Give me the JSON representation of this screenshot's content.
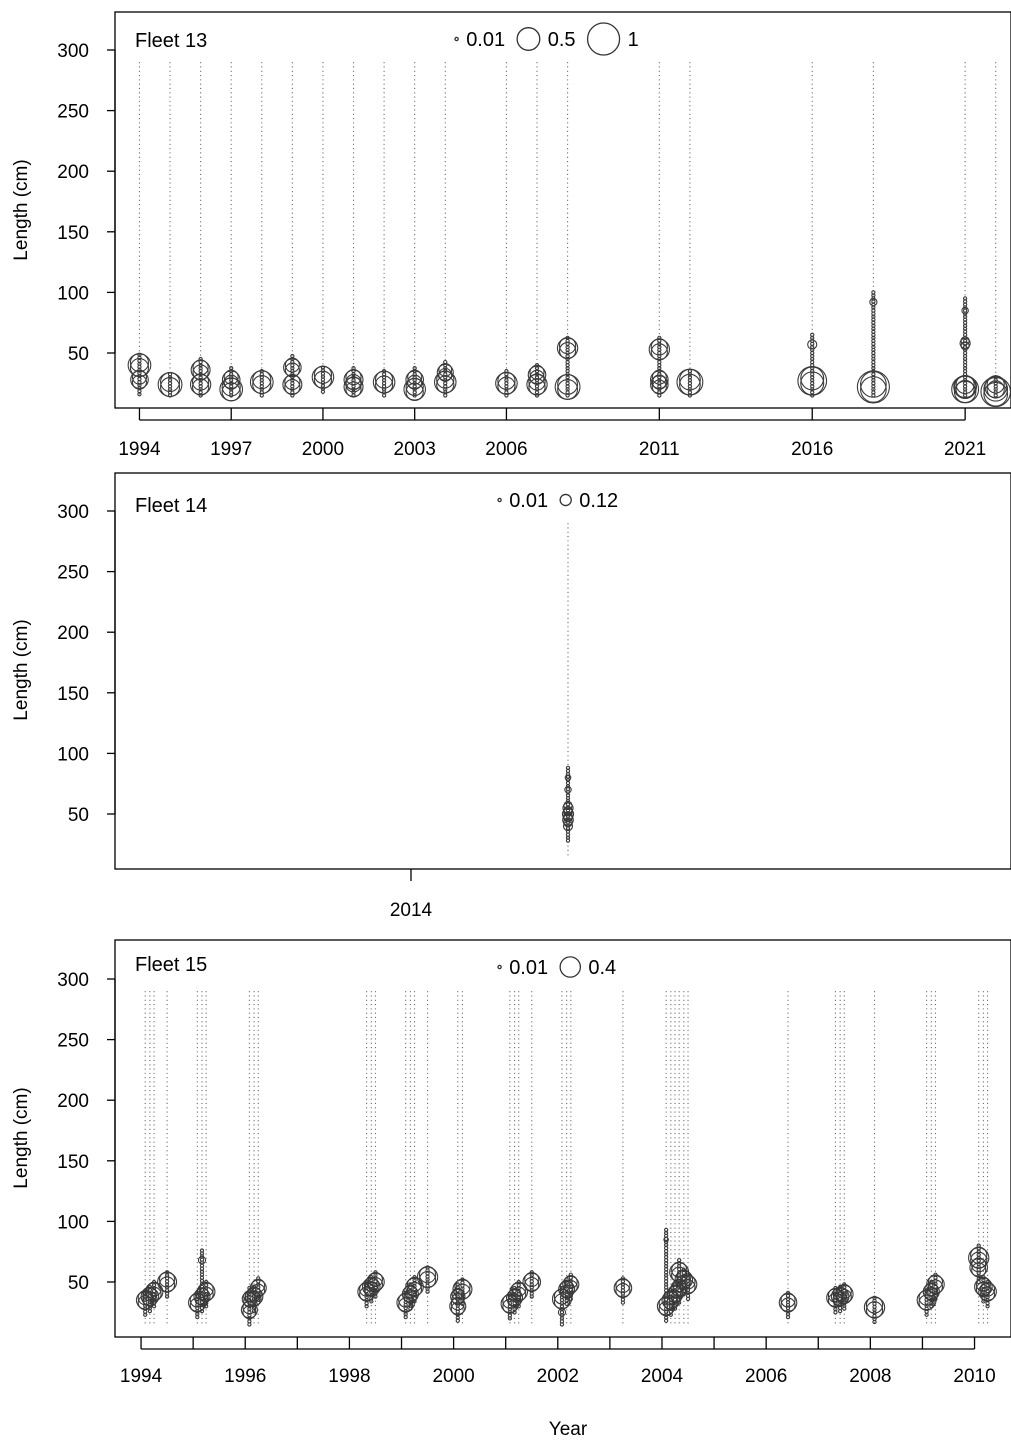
{
  "chart_data": [
    {
      "type": "scatter",
      "subtype": "bubble",
      "panel_label": "Fleet 13",
      "ylabel": "Length (cm)",
      "xlabel": "",
      "ylim": [
        0,
        330
      ],
      "xlim": [
        1993.2,
        2022.5
      ],
      "yticks": [
        50,
        100,
        150,
        200,
        250,
        300
      ],
      "xticks": [
        1994,
        1997,
        2000,
        2003,
        2006,
        2011,
        2016,
        2021
      ],
      "legend": {
        "labels": [
          "0.01",
          "0.5",
          "1"
        ],
        "values": [
          0.01,
          0.5,
          1
        ],
        "placement": "top-center"
      },
      "grid": false,
      "years": [
        1994,
        1995,
        1996,
        1997,
        1998,
        1999,
        2000,
        2001,
        2002,
        2003,
        2004,
        2006,
        2007,
        2008,
        2011,
        2012,
        2016,
        2018,
        2021,
        2022
      ],
      "modes": [
        {
          "x": 1994,
          "peaks": [
            [
              40,
              0.5
            ],
            [
              28,
              0.3
            ]
          ]
        },
        {
          "x": 1995,
          "peaks": [
            [
              24,
              0.55
            ]
          ]
        },
        {
          "x": 1996,
          "peaks": [
            [
              36,
              0.35
            ],
            [
              24,
              0.4
            ]
          ]
        },
        {
          "x": 1997,
          "peaks": [
            [
              28,
              0.3
            ],
            [
              20,
              0.5
            ]
          ]
        },
        {
          "x": 1998,
          "peaks": [
            [
              26,
              0.5
            ]
          ]
        },
        {
          "x": 1999,
          "peaks": [
            [
              38,
              0.3
            ],
            [
              24,
              0.35
            ]
          ]
        },
        {
          "x": 2000,
          "peaks": [
            [
              30,
              0.45
            ]
          ]
        },
        {
          "x": 2001,
          "peaks": [
            [
              28,
              0.35
            ],
            [
              22,
              0.35
            ]
          ]
        },
        {
          "x": 2002,
          "peaks": [
            [
              26,
              0.45
            ]
          ]
        },
        {
          "x": 2003,
          "peaks": [
            [
              28,
              0.3
            ],
            [
              20,
              0.45
            ]
          ]
        },
        {
          "x": 2004,
          "peaks": [
            [
              34,
              0.25
            ],
            [
              26,
              0.45
            ]
          ]
        },
        {
          "x": 2006,
          "peaks": [
            [
              25,
              0.45
            ]
          ]
        },
        {
          "x": 2007,
          "peaks": [
            [
              32,
              0.3
            ],
            [
              24,
              0.4
            ]
          ]
        },
        {
          "x": 2008,
          "peaks": [
            [
              54,
              0.4
            ],
            [
              22,
              0.6
            ]
          ]
        },
        {
          "x": 2011,
          "peaks": [
            [
              53,
              0.4
            ],
            [
              28,
              0.3
            ],
            [
              24,
              0.3
            ]
          ]
        },
        {
          "x": 2012,
          "peaks": [
            [
              26,
              0.65
            ]
          ]
        },
        {
          "x": 2016,
          "peaks": [
            [
              57,
              0.08
            ],
            [
              27,
              0.8
            ]
          ]
        },
        {
          "x": 2018,
          "peaks": [
            [
              92,
              0.05
            ],
            [
              22,
              1.0
            ]
          ]
        },
        {
          "x": 2021,
          "peaks": [
            [
              85,
              0.04
            ],
            [
              58,
              0.1
            ],
            [
              22,
              0.5
            ],
            [
              20,
              0.7
            ]
          ]
        },
        {
          "x": 2022,
          "peaks": [
            [
              22,
              0.45
            ],
            [
              18,
              0.85
            ]
          ]
        }
      ]
    },
    {
      "type": "scatter",
      "subtype": "bubble",
      "panel_label": "Fleet 14",
      "ylabel": "Length (cm)",
      "xlabel": "",
      "ylim": [
        0,
        330
      ],
      "xlim": [
        2013.98,
        2014.04
      ],
      "yticks": [
        50,
        100,
        150,
        200,
        250,
        300
      ],
      "xticks": [
        2014
      ],
      "legend": {
        "labels": [
          "0.01",
          "0.12"
        ],
        "values": [
          0.01,
          0.12
        ],
        "placement": "top-center"
      },
      "grid": false,
      "years": [
        2014.025
      ],
      "modes": [
        {
          "x": 2014.025,
          "peaks": [
            [
              55,
              0.1
            ],
            [
              50,
              0.12
            ],
            [
              45,
              0.11
            ],
            [
              40,
              0.08
            ],
            [
              70,
              0.04
            ],
            [
              80,
              0.03
            ]
          ]
        }
      ]
    },
    {
      "type": "scatter",
      "subtype": "bubble",
      "panel_label": "Fleet 15",
      "ylabel": "Length (cm)",
      "xlabel": "Year",
      "ylim": [
        0,
        330
      ],
      "xlim": [
        1993.5,
        2010.7
      ],
      "yticks": [
        50,
        100,
        150,
        200,
        250,
        300
      ],
      "xticks": [
        1994,
        1996,
        1998,
        2000,
        2002,
        2004,
        2006,
        2008,
        2010
      ],
      "minor_xticks": [
        1995,
        1997,
        1999,
        2001,
        2003,
        2005,
        2007,
        2009
      ],
      "legend": {
        "labels": [
          "0.01",
          "0.4"
        ],
        "values": [
          0.01,
          0.4
        ],
        "placement": "top-center"
      },
      "grid": false,
      "years": [
        1994.08,
        1994.17,
        1994.25,
        1994.5,
        1995.08,
        1995.17,
        1995.25,
        1996.08,
        1996.17,
        1996.25,
        1998.33,
        1998.42,
        1998.5,
        1999.08,
        1999.17,
        1999.25,
        1999.5,
        2000.08,
        2000.17,
        2001.08,
        2001.17,
        2001.25,
        2001.5,
        2002.08,
        2002.17,
        2002.25,
        2003.25,
        2004.08,
        2004.17,
        2004.25,
        2004.33,
        2004.42,
        2004.5,
        2006.42,
        2007.33,
        2007.42,
        2007.5,
        2008.08,
        2009.08,
        2009.17,
        2009.25,
        2010.08,
        2010.17,
        2010.25
      ],
      "modes": [
        {
          "x": 1994.08,
          "peaks": [
            [
              35,
              0.3
            ]
          ]
        },
        {
          "x": 1994.17,
          "peaks": [
            [
              38,
              0.3
            ]
          ]
        },
        {
          "x": 1994.25,
          "peaks": [
            [
              42,
              0.3
            ]
          ]
        },
        {
          "x": 1994.5,
          "peaks": [
            [
              50,
              0.35
            ]
          ]
        },
        {
          "x": 1995.08,
          "peaks": [
            [
              33,
              0.3
            ]
          ]
        },
        {
          "x": 1995.17,
          "peaks": [
            [
              38,
              0.25
            ],
            [
              68,
              0.05
            ]
          ]
        },
        {
          "x": 1995.25,
          "peaks": [
            [
              42,
              0.3
            ]
          ]
        },
        {
          "x": 1996.08,
          "peaks": [
            [
              27,
              0.25
            ],
            [
              36,
              0.2
            ]
          ]
        },
        {
          "x": 1996.17,
          "peaks": [
            [
              38,
              0.3
            ]
          ]
        },
        {
          "x": 1996.25,
          "peaks": [
            [
              45,
              0.25
            ]
          ]
        },
        {
          "x": 1998.33,
          "peaks": [
            [
              42,
              0.3
            ]
          ]
        },
        {
          "x": 1998.42,
          "peaks": [
            [
              46,
              0.3
            ]
          ]
        },
        {
          "x": 1998.5,
          "peaks": [
            [
              50,
              0.3
            ]
          ]
        },
        {
          "x": 1999.08,
          "peaks": [
            [
              33,
              0.3
            ]
          ]
        },
        {
          "x": 1999.17,
          "peaks": [
            [
              40,
              0.25
            ]
          ]
        },
        {
          "x": 1999.25,
          "peaks": [
            [
              46,
              0.3
            ]
          ]
        },
        {
          "x": 1999.5,
          "peaks": [
            [
              54,
              0.4
            ]
          ]
        },
        {
          "x": 2000.08,
          "peaks": [
            [
              30,
              0.25
            ],
            [
              38,
              0.2
            ]
          ]
        },
        {
          "x": 2000.17,
          "peaks": [
            [
              44,
              0.35
            ]
          ]
        },
        {
          "x": 2001.08,
          "peaks": [
            [
              32,
              0.3
            ]
          ]
        },
        {
          "x": 2001.17,
          "peaks": [
            [
              37,
              0.25
            ]
          ]
        },
        {
          "x": 2001.25,
          "peaks": [
            [
              42,
              0.3
            ]
          ]
        },
        {
          "x": 2001.5,
          "peaks": [
            [
              50,
              0.3
            ]
          ]
        },
        {
          "x": 2002.08,
          "peaks": [
            [
              36,
              0.35
            ],
            [
              25,
              0.05
            ]
          ]
        },
        {
          "x": 2002.17,
          "peaks": [
            [
              44,
              0.25
            ]
          ]
        },
        {
          "x": 2002.25,
          "peaks": [
            [
              48,
              0.25
            ]
          ]
        },
        {
          "x": 2003.25,
          "peaks": [
            [
              45,
              0.3
            ]
          ]
        },
        {
          "x": 2004.08,
          "peaks": [
            [
              30,
              0.3
            ],
            [
              85,
              0.02
            ]
          ]
        },
        {
          "x": 2004.17,
          "peaks": [
            [
              35,
              0.3
            ]
          ]
        },
        {
          "x": 2004.25,
          "peaks": [
            [
              40,
              0.25
            ]
          ]
        },
        {
          "x": 2004.33,
          "peaks": [
            [
              58,
              0.35
            ],
            [
              45,
              0.25
            ]
          ]
        },
        {
          "x": 2004.42,
          "peaks": [
            [
              52,
              0.3
            ]
          ]
        },
        {
          "x": 2004.5,
          "peaks": [
            [
              48,
              0.3
            ]
          ]
        },
        {
          "x": 2006.42,
          "peaks": [
            [
              33,
              0.3
            ]
          ]
        },
        {
          "x": 2007.33,
          "peaks": [
            [
              37,
              0.3
            ]
          ]
        },
        {
          "x": 2007.42,
          "peaks": [
            [
              38,
              0.3
            ]
          ]
        },
        {
          "x": 2007.5,
          "peaks": [
            [
              40,
              0.3
            ]
          ]
        },
        {
          "x": 2008.08,
          "peaks": [
            [
              29,
              0.4
            ]
          ]
        },
        {
          "x": 2009.08,
          "peaks": [
            [
              35,
              0.35
            ]
          ]
        },
        {
          "x": 2009.17,
          "peaks": [
            [
              42,
              0.25
            ]
          ]
        },
        {
          "x": 2009.25,
          "peaks": [
            [
              48,
              0.3
            ]
          ]
        },
        {
          "x": 2010.08,
          "peaks": [
            [
              70,
              0.4
            ],
            [
              62,
              0.3
            ]
          ]
        },
        {
          "x": 2010.17,
          "peaks": [
            [
              46,
              0.3
            ]
          ]
        },
        {
          "x": 2010.25,
          "peaks": [
            [
              42,
              0.3
            ]
          ]
        }
      ]
    }
  ]
}
